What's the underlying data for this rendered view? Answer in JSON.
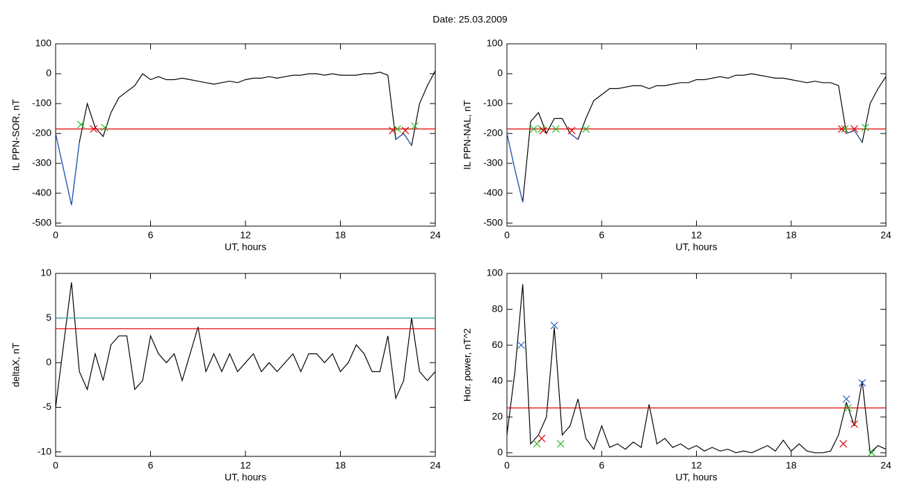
{
  "title": "Date:  25.03.2009",
  "chart_data": [
    {
      "type": "line",
      "ylabel": "IL PPN-SOR, nT",
      "xlabel": "UT, hours",
      "xlim": [
        0,
        24
      ],
      "xticks": [
        0,
        6,
        12,
        18,
        24
      ],
      "ylim": [
        -510,
        100
      ],
      "yticks": [
        -500,
        -400,
        -300,
        -200,
        -100,
        0,
        100
      ],
      "x": [
        0,
        0.5,
        1,
        1.5,
        2,
        2.5,
        3,
        3.5,
        4,
        4.5,
        5,
        5.5,
        6,
        6.5,
        7,
        7.5,
        8,
        8.5,
        9,
        9.5,
        10,
        10.5,
        11,
        11.5,
        12,
        12.5,
        13,
        13.5,
        14,
        14.5,
        15,
        15.5,
        16,
        16.5,
        17,
        17.5,
        18,
        18.5,
        19,
        19.5,
        20,
        20.5,
        21,
        21.5,
        22,
        22.5,
        23,
        23.5,
        24
      ],
      "series": [
        {
          "color": "#000000",
          "values": [
            -200,
            -320,
            -440,
            -230,
            -100,
            -180,
            -210,
            -130,
            -80,
            -60,
            -40,
            0,
            -20,
            -10,
            -20,
            -20,
            -15,
            -20,
            -25,
            -30,
            -35,
            -30,
            -25,
            -30,
            -20,
            -15,
            -15,
            -10,
            -15,
            -10,
            -5,
            -5,
            0,
            0,
            -5,
            0,
            -5,
            -5,
            -5,
            0,
            0,
            5,
            -5,
            -220,
            -200,
            -240,
            -100,
            -40,
            10
          ]
        },
        {
          "color": "#1f5fc0",
          "values": [
            -200,
            -320,
            -440,
            -230,
            null,
            null,
            -210,
            null,
            null,
            null,
            null,
            null,
            null,
            null,
            null,
            null,
            null,
            null,
            null,
            null,
            null,
            null,
            null,
            null,
            null,
            null,
            null,
            null,
            null,
            null,
            null,
            null,
            null,
            null,
            null,
            null,
            null,
            null,
            null,
            null,
            null,
            null,
            null,
            -220,
            -200,
            -240,
            null,
            null,
            null
          ]
        }
      ],
      "hlines": [
        {
          "value": -185,
          "color": "#e00000"
        }
      ],
      "markers": [
        {
          "color": "#22bb22",
          "x": [
            1.6,
            3.1,
            21.6,
            22.7
          ],
          "values": [
            -170,
            -180,
            -185,
            -175
          ]
        },
        {
          "color": "#e00000",
          "x": [
            2.4,
            21.3,
            22.1
          ],
          "values": [
            -185,
            -190,
            -190
          ]
        }
      ]
    },
    {
      "type": "line",
      "ylabel": "IL PPN-NAL, nT",
      "xlabel": "UT, hours",
      "xlim": [
        0,
        24
      ],
      "xticks": [
        0,
        6,
        12,
        18,
        24
      ],
      "ylim": [
        -510,
        100
      ],
      "yticks": [
        -500,
        -400,
        -300,
        -200,
        -100,
        0,
        100
      ],
      "x": [
        0,
        0.5,
        1,
        1.5,
        2,
        2.5,
        3,
        3.5,
        4,
        4.5,
        5,
        5.5,
        6,
        6.5,
        7,
        7.5,
        8,
        8.5,
        9,
        9.5,
        10,
        10.5,
        11,
        11.5,
        12,
        12.5,
        13,
        13.5,
        14,
        14.5,
        15,
        15.5,
        16,
        16.5,
        17,
        17.5,
        18,
        18.5,
        19,
        19.5,
        20,
        20.5,
        21,
        21.5,
        22,
        22.5,
        23,
        23.5,
        24
      ],
      "series": [
        {
          "color": "#000000",
          "values": [
            -200,
            -320,
            -430,
            -160,
            -130,
            -200,
            -150,
            -150,
            -200,
            -220,
            -150,
            -90,
            -70,
            -50,
            -50,
            -45,
            -40,
            -40,
            -50,
            -40,
            -40,
            -35,
            -30,
            -30,
            -20,
            -20,
            -15,
            -10,
            -15,
            -5,
            -5,
            0,
            -5,
            -10,
            -15,
            -15,
            -20,
            -25,
            -30,
            -25,
            -30,
            -30,
            -40,
            -200,
            -190,
            -230,
            -100,
            -50,
            -10
          ]
        },
        {
          "color": "#1f5fc0",
          "values": [
            -200,
            -320,
            -430,
            null,
            null,
            -200,
            null,
            null,
            -200,
            -220,
            null,
            null,
            null,
            null,
            null,
            null,
            null,
            null,
            null,
            null,
            null,
            null,
            null,
            null,
            null,
            null,
            null,
            null,
            null,
            null,
            null,
            null,
            null,
            null,
            null,
            null,
            null,
            null,
            null,
            null,
            null,
            null,
            null,
            -200,
            -190,
            -230,
            null,
            null,
            null
          ]
        }
      ],
      "hlines": [
        {
          "value": -185,
          "color": "#e00000"
        }
      ],
      "markers": [
        {
          "color": "#22bb22",
          "x": [
            1.7,
            2.2,
            3.1,
            5,
            21.4,
            22.7
          ],
          "values": [
            -185,
            -185,
            -185,
            -185,
            -185,
            -180
          ]
        },
        {
          "color": "#e00000",
          "x": [
            2.3,
            4.1,
            21.2,
            22
          ],
          "values": [
            -190,
            -190,
            -185,
            -185
          ]
        }
      ]
    },
    {
      "type": "line",
      "ylabel": "deltaX, nT",
      "xlabel": "UT, hours",
      "xlim": [
        0,
        24
      ],
      "xticks": [
        0,
        6,
        12,
        18,
        24
      ],
      "ylim": [
        -10.5,
        10
      ],
      "yticks": [
        -10,
        -5,
        0,
        5,
        10
      ],
      "x": [
        0,
        0.5,
        1,
        1.5,
        2,
        2.5,
        3,
        3.5,
        4,
        4.5,
        5,
        5.5,
        6,
        6.5,
        7,
        7.5,
        8,
        8.5,
        9,
        9.5,
        10,
        10.5,
        11,
        11.5,
        12,
        12.5,
        13,
        13.5,
        14,
        14.5,
        15,
        15.5,
        16,
        16.5,
        17,
        17.5,
        18,
        18.5,
        19,
        19.5,
        20,
        20.5,
        21,
        21.5,
        22,
        22.5,
        23,
        23.5,
        24
      ],
      "series": [
        {
          "color": "#000000",
          "values": [
            -5,
            2,
            9,
            -1,
            -3,
            1,
            -2,
            2,
            3,
            3,
            -3,
            -2,
            3,
            1,
            0,
            1,
            -2,
            1,
            4,
            -1,
            1,
            -1,
            1,
            -1,
            0,
            1,
            -1,
            0,
            -1,
            0,
            1,
            -1,
            1,
            1,
            0,
            1,
            -1,
            0,
            2,
            1,
            -1,
            -1,
            3,
            -4,
            -2,
            5,
            -1,
            -2,
            -1
          ]
        }
      ],
      "hlines": [
        {
          "value": 5,
          "color": "#2a9d9d"
        },
        {
          "value": 3.8,
          "color": "#e00000"
        }
      ],
      "markers": []
    },
    {
      "type": "line",
      "ylabel": "Hor. power, nT^2",
      "xlabel": "UT, hours",
      "xlim": [
        0,
        24
      ],
      "xticks": [
        0,
        6,
        12,
        18,
        24
      ],
      "ylim": [
        -2,
        100
      ],
      "yticks": [
        0,
        20,
        40,
        60,
        80,
        100
      ],
      "x": [
        0,
        0.5,
        1,
        1.5,
        2,
        2.5,
        3,
        3.5,
        4,
        4.5,
        5,
        5.5,
        6,
        6.5,
        7,
        7.5,
        8,
        8.5,
        9,
        9.5,
        10,
        10.5,
        11,
        11.5,
        12,
        12.5,
        13,
        13.5,
        14,
        14.5,
        15,
        15.5,
        16,
        16.5,
        17,
        17.5,
        18,
        18.5,
        19,
        19.5,
        20,
        20.5,
        21,
        21.5,
        22,
        22.5,
        23,
        23.5,
        24
      ],
      "series": [
        {
          "color": "#000000",
          "values": [
            10,
            45,
            94,
            5,
            10,
            20,
            70,
            10,
            15,
            30,
            8,
            2,
            15,
            3,
            5,
            2,
            6,
            3,
            27,
            5,
            8,
            3,
            5,
            2,
            4,
            1,
            3,
            1,
            2,
            0,
            1,
            0,
            2,
            4,
            1,
            7,
            1,
            5,
            1,
            0,
            0,
            1,
            10,
            28,
            15,
            40,
            0,
            4,
            2
          ]
        }
      ],
      "hlines": [
        {
          "value": 25,
          "color": "#e00000"
        }
      ],
      "markers": [
        {
          "color": "#1f5fc0",
          "x": [
            0.9,
            3,
            21.5,
            22.5
          ],
          "values": [
            60,
            71,
            30,
            39
          ]
        },
        {
          "color": "#22bb22",
          "x": [
            1.9,
            3.4,
            21.6,
            23.1
          ],
          "values": [
            5,
            5,
            25,
            0
          ]
        },
        {
          "color": "#e00000",
          "x": [
            2.2,
            21.3,
            22
          ],
          "values": [
            8,
            5,
            16
          ]
        }
      ]
    }
  ]
}
